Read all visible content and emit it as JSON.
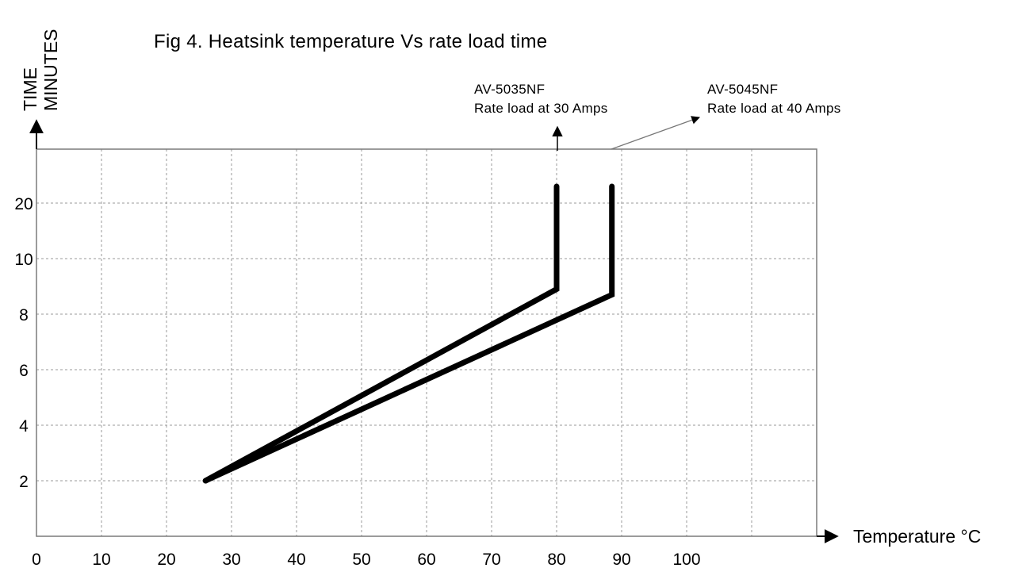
{
  "chart_data": {
    "type": "line",
    "title": "Fig 4. Heatsink temperature Vs rate load time",
    "xlabel": "Temperature °C",
    "ylabel": [
      "TIME",
      "MINUTES"
    ],
    "x_ticks": [
      "0",
      "10",
      "20",
      "30",
      "40",
      "50",
      "60",
      "70",
      "80",
      "90",
      "100"
    ],
    "y_ticks": [
      "2",
      "4",
      "6",
      "8",
      "10",
      "20"
    ],
    "xlim": [
      0,
      120
    ],
    "grid": true,
    "series": [
      {
        "name": "AV-5035NF",
        "label_line2": "Rate load at 30 Amps",
        "points": [
          [
            26,
            2
          ],
          [
            80,
            8.9
          ],
          [
            80,
            23
          ]
        ]
      },
      {
        "name": "AV-5045NF",
        "label_line2": "Rate load at 40 Amps",
        "points": [
          [
            26,
            2
          ],
          [
            88.5,
            8.7
          ],
          [
            88.5,
            23
          ]
        ]
      }
    ]
  }
}
